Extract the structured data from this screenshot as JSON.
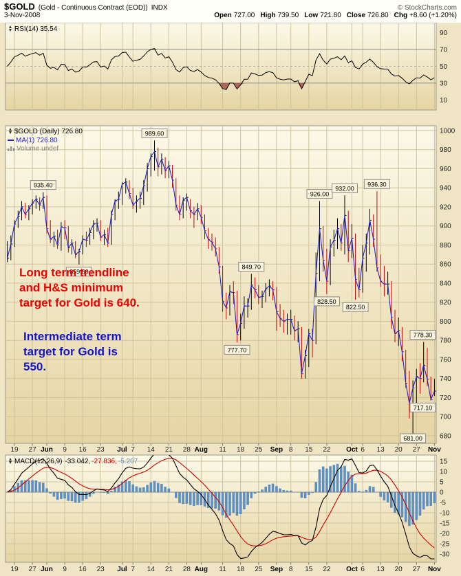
{
  "header": {
    "symbol": "$GOLD",
    "name": "(Gold - Continuous Contract (EOD))",
    "exchange": "INDX",
    "copyright": "© StockCharts.com",
    "date": "3-Nov-2008",
    "quote": [
      {
        "label": "Open",
        "value": "727.00"
      },
      {
        "label": "High",
        "value": "739.50"
      },
      {
        "label": "Low",
        "value": "721.80"
      },
      {
        "label": "Close",
        "value": "726.80"
      },
      {
        "label": "Chg",
        "value": "+8.60 (+1.20%)"
      }
    ]
  },
  "legends": {
    "rsi": "RSI(14) 35.54",
    "price": "$GOLD (Daily) 726.80",
    "ma": "MA(1) 726.80",
    "volume": "Volume undef",
    "macd_label": "MACD(12,26,9)",
    "macd_values": [
      "-33.042,",
      "-27.836,",
      "-5.207"
    ]
  },
  "annotations": {
    "red_lines": [
      "Long term trendline",
      "and H&S minimum",
      "target for Gold is 640."
    ],
    "blue_lines": [
      "Intermediate term",
      "target for Gold is",
      "550."
    ]
  },
  "colors": {
    "page_bg": "#EFE5C4",
    "header_bg": "#FFFEF9",
    "plot_top": "#FCF9E8",
    "plot_bottom": "#E6D5A4",
    "panel_border": "#999988",
    "grid": "#CFC39C",
    "band": "#8C8C84",
    "zero_line": "#88887E",
    "bar_up": "#000000",
    "bar_down": "#CC0000",
    "ma": "#2323C8",
    "hist": "#5E8FC0",
    "signal": "#CC0000",
    "rsi_fill": "rgba(140,30,30,0.6)",
    "flag_bg": "#F9F3DC",
    "flag_border": "#8A8A8A",
    "annotation_red": "#EE0000",
    "annotation_blue": "#1414CC"
  },
  "chart_data": {
    "type": "ohlc",
    "title": "$GOLD (Daily)",
    "last_close": 726.8,
    "price_axis": {
      "min": 680,
      "max": 1000,
      "step": 20
    },
    "dates": [
      "May 15",
      "May 16",
      "May 19",
      "May 20",
      "May 21",
      "May 22",
      "May 23",
      "May 27",
      "May 28",
      "May 29",
      "May 30",
      "Jun 2",
      "Jun 3",
      "Jun 4",
      "Jun 5",
      "Jun 6",
      "Jun 9",
      "Jun 10",
      "Jun 11",
      "Jun 12",
      "Jun 13",
      "Jun 16",
      "Jun 17",
      "Jun 18",
      "Jun 19",
      "Jun 20",
      "Jun 23",
      "Jun 24",
      "Jun 25",
      "Jun 26",
      "Jun 27",
      "Jun 30",
      "Jul 1",
      "Jul 2",
      "Jul 3",
      "Jul 7",
      "Jul 8",
      "Jul 9",
      "Jul 10",
      "Jul 11",
      "Jul 14",
      "Jul 15",
      "Jul 16",
      "Jul 17",
      "Jul 18",
      "Jul 21",
      "Jul 22",
      "Jul 23",
      "Jul 24",
      "Jul 25",
      "Jul 28",
      "Jul 29",
      "Jul 30",
      "Jul 31",
      "Aug 1",
      "Aug 4",
      "Aug 5",
      "Aug 6",
      "Aug 7",
      "Aug 8",
      "Aug 11",
      "Aug 12",
      "Aug 13",
      "Aug 14",
      "Aug 15",
      "Aug 18",
      "Aug 19",
      "Aug 20",
      "Aug 21",
      "Aug 22",
      "Aug 25",
      "Aug 26",
      "Aug 27",
      "Aug 28",
      "Aug 29",
      "Sep 2",
      "Sep 3",
      "Sep 4",
      "Sep 5",
      "Sep 8",
      "Sep 9",
      "Sep 10",
      "Sep 11",
      "Sep 12",
      "Sep 15",
      "Sep 16",
      "Sep 17",
      "Sep 18",
      "Sep 19",
      "Sep 22",
      "Sep 23",
      "Sep 24",
      "Sep 25",
      "Sep 26",
      "Sep 29",
      "Sep 30",
      "Oct 1",
      "Oct 2",
      "Oct 3",
      "Oct 6",
      "Oct 7",
      "Oct 8",
      "Oct 9",
      "Oct 10",
      "Oct 13",
      "Oct 14",
      "Oct 15",
      "Oct 16",
      "Oct 17",
      "Oct 20",
      "Oct 21",
      "Oct 22",
      "Oct 23",
      "Oct 24",
      "Oct 27",
      "Oct 28",
      "Oct 29",
      "Oct 30",
      "Oct 31",
      "Nov 3"
    ],
    "bars": [
      [
        884,
        862,
        866
      ],
      [
        890,
        864,
        881
      ],
      [
        906,
        878,
        902
      ],
      [
        916,
        898,
        910
      ],
      [
        926,
        906,
        920
      ],
      [
        924,
        908,
        912
      ],
      [
        922,
        906,
        918
      ],
      [
        928,
        912,
        924
      ],
      [
        932,
        918,
        928
      ],
      [
        930,
        916,
        922
      ],
      [
        935.4,
        918,
        930
      ],
      [
        932,
        892,
        897
      ],
      [
        906,
        882,
        886
      ],
      [
        894,
        878,
        889
      ],
      [
        896,
        876,
        880
      ],
      [
        904,
        874,
        899
      ],
      [
        906,
        886,
        898
      ],
      [
        900,
        872,
        877
      ],
      [
        886,
        870,
        882
      ],
      [
        884,
        866,
        870
      ],
      [
        876,
        859.6,
        873
      ],
      [
        890,
        870,
        886
      ],
      [
        894,
        878,
        885
      ],
      [
        898,
        880,
        893
      ],
      [
        906,
        886,
        902
      ],
      [
        908,
        894,
        903
      ],
      [
        906,
        884,
        888
      ],
      [
        896,
        880,
        891
      ],
      [
        898,
        878,
        882
      ],
      [
        916,
        880,
        912
      ],
      [
        928,
        906,
        926
      ],
      [
        936,
        918,
        928
      ],
      [
        946,
        922,
        944
      ],
      [
        950,
        934,
        946
      ],
      [
        948,
        928,
        934
      ],
      [
        940,
        918,
        922
      ],
      [
        932,
        914,
        926
      ],
      [
        936,
        918,
        929
      ],
      [
        948,
        922,
        942
      ],
      [
        966,
        936,
        960
      ],
      [
        976,
        952,
        973
      ],
      [
        989.6,
        958,
        978
      ],
      [
        982,
        952,
        962
      ],
      [
        976,
        954,
        970
      ],
      [
        972,
        950,
        958
      ],
      [
        968,
        950,
        963
      ],
      [
        964,
        940,
        948
      ],
      [
        950,
        916,
        922
      ],
      [
        932,
        906,
        912
      ],
      [
        930,
        908,
        927
      ],
      [
        934,
        916,
        930
      ],
      [
        928,
        908,
        916
      ],
      [
        920,
        898,
        912
      ],
      [
        924,
        906,
        918
      ],
      [
        922,
        902,
        909
      ],
      [
        912,
        886,
        895
      ],
      [
        898,
        876,
        886
      ],
      [
        892,
        874,
        883
      ],
      [
        888,
        868,
        876
      ],
      [
        878,
        850,
        857
      ],
      [
        858,
        810,
        821
      ],
      [
        830,
        802,
        814
      ],
      [
        838,
        806,
        831
      ],
      [
        842,
        818,
        830
      ],
      [
        832,
        777.7,
        786
      ],
      [
        808,
        780,
        798
      ],
      [
        826,
        792,
        816
      ],
      [
        824,
        804,
        816
      ],
      [
        849.7,
        812,
        838
      ],
      [
        846,
        824,
        833
      ],
      [
        838,
        818,
        825
      ],
      [
        832,
        814,
        826
      ],
      [
        840,
        820,
        834
      ],
      [
        844,
        826,
        837
      ],
      [
        842,
        822,
        833
      ],
      [
        836,
        790,
        810
      ],
      [
        818,
        794,
        803
      ],
      [
        812,
        788,
        800
      ],
      [
        808,
        786,
        802
      ],
      [
        812,
        786,
        802
      ],
      [
        806,
        780,
        790
      ],
      [
        800,
        778,
        792
      ],
      [
        794,
        739.8,
        745
      ],
      [
        770,
        740,
        764
      ],
      [
        792,
        752,
        787
      ],
      [
        792,
        762,
        780
      ],
      [
        872,
        776,
        850
      ],
      [
        926,
        842,
        897
      ],
      [
        900,
        852,
        864
      ],
      [
        876,
        828.5,
        842
      ],
      [
        886,
        838,
        878
      ],
      [
        896,
        868,
        885
      ],
      [
        908,
        876,
        897
      ],
      [
        902,
        874,
        882
      ],
      [
        932,
        870,
        911
      ],
      [
        916,
        862,
        874
      ],
      [
        902,
        866,
        887
      ],
      [
        892,
        822.5,
        844
      ],
      [
        856,
        825,
        833
      ],
      [
        880,
        830,
        866
      ],
      [
        892,
        852,
        882
      ],
      [
        918,
        870,
        906
      ],
      [
        912,
        878,
        886
      ],
      [
        936.3,
        852,
        856
      ],
      [
        870,
        836,
        842
      ],
      [
        858,
        826,
        839
      ],
      [
        852,
        828,
        839
      ],
      [
        842,
        792,
        804
      ],
      [
        812,
        778,
        787
      ],
      [
        804,
        774,
        790
      ],
      [
        794,
        758,
        768
      ],
      [
        770,
        730,
        735
      ],
      [
        748,
        698,
        714
      ],
      [
        738,
        681,
        730
      ],
      [
        750,
        712,
        742
      ],
      [
        756,
        724,
        740
      ],
      [
        778.3,
        736,
        754
      ],
      [
        772,
        732,
        739
      ],
      [
        742,
        717.1,
        718
      ],
      [
        739.5,
        721.8,
        726.8
      ]
    ],
    "x_ticks": [
      {
        "i": 2,
        "label": "19"
      },
      {
        "i": 7,
        "label": "27"
      },
      {
        "i": 11,
        "label": "Jun",
        "b": 1
      },
      {
        "i": 16,
        "label": "9"
      },
      {
        "i": 21,
        "label": "16"
      },
      {
        "i": 26,
        "label": "23"
      },
      {
        "i": 32,
        "label": "Jul",
        "b": 1
      },
      {
        "i": 35,
        "label": "7"
      },
      {
        "i": 40,
        "label": "14"
      },
      {
        "i": 45,
        "label": "21"
      },
      {
        "i": 50,
        "label": "28"
      },
      {
        "i": 54,
        "label": "Aug",
        "b": 1
      },
      {
        "i": 60,
        "label": "11"
      },
      {
        "i": 65,
        "label": "18"
      },
      {
        "i": 70,
        "label": "25"
      },
      {
        "i": 75,
        "label": "Sep",
        "b": 1
      },
      {
        "i": 79,
        "label": "8"
      },
      {
        "i": 84,
        "label": "15"
      },
      {
        "i": 89,
        "label": "22"
      },
      {
        "i": 96,
        "label": "Oct",
        "b": 1
      },
      {
        "i": 99,
        "label": "6"
      },
      {
        "i": 104,
        "label": "13"
      },
      {
        "i": 109,
        "label": "20"
      },
      {
        "i": 114,
        "label": "27"
      },
      {
        "i": 119,
        "label": "Nov",
        "b": 1
      }
    ],
    "price_flags": [
      {
        "i": 10,
        "price": 935.4,
        "label": "935.40",
        "side": "above"
      },
      {
        "i": 20,
        "price": 859.6,
        "label": "859.60",
        "side": "below"
      },
      {
        "i": 41,
        "price": 989.6,
        "label": "989.60",
        "side": "above"
      },
      {
        "i": 64,
        "price": 777.7,
        "label": "777.70",
        "side": "below"
      },
      {
        "i": 68,
        "price": 849.7,
        "label": "849.70",
        "side": "above"
      },
      {
        "i": 87,
        "price": 926.0,
        "label": "926.00",
        "side": "above"
      },
      {
        "i": 89,
        "price": 828.5,
        "label": "828.50",
        "side": "below"
      },
      {
        "i": 94,
        "price": 932.0,
        "label": "932.00",
        "side": "above"
      },
      {
        "i": 97,
        "price": 822.5,
        "label": "822.50",
        "side": "below"
      },
      {
        "i": 103,
        "price": 936.3,
        "label": "936.30",
        "side": "above"
      },
      {
        "i": 113,
        "price": 681.0,
        "label": "681.00",
        "side": "below"
      },
      {
        "i": 116,
        "price": 778.3,
        "label": "778.30",
        "side": "above"
      },
      {
        "i": 118,
        "price": 717.1,
        "label": "717.10",
        "side": "below"
      }
    ],
    "indicators": {
      "rsi": {
        "period": 14,
        "last": 35.54,
        "overbought": 70,
        "oversold": 30,
        "axis": [
          90,
          70,
          50,
          30,
          10
        ]
      },
      "macd": {
        "fast": 12,
        "slow": 26,
        "signal": 9,
        "values": [
          -33.042,
          -27.836,
          -5.207
        ],
        "axis_min": -30,
        "axis_max": 15,
        "axis_step": 5
      }
    }
  }
}
